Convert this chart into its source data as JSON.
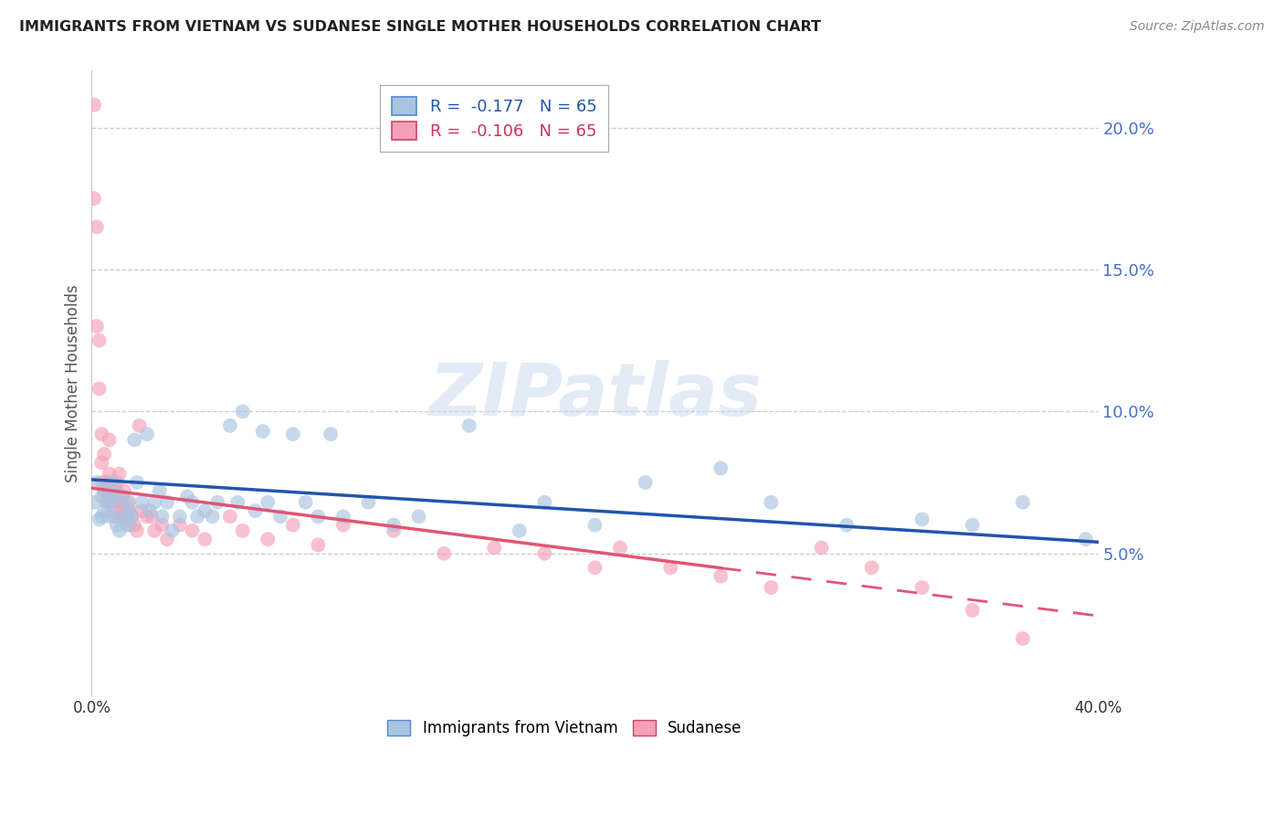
{
  "title": "IMMIGRANTS FROM VIETNAM VS SUDANESE SINGLE MOTHER HOUSEHOLDS CORRELATION CHART",
  "source": "Source: ZipAtlas.com",
  "ylabel": "Single Mother Households",
  "xlim": [
    0.0,
    0.4
  ],
  "ylim": [
    0.0,
    0.22
  ],
  "xticks": [
    0.0,
    0.05,
    0.1,
    0.15,
    0.2,
    0.25,
    0.3,
    0.35,
    0.4
  ],
  "yticks_right": [
    0.05,
    0.1,
    0.15,
    0.2
  ],
  "ytick_labels_right": [
    "5.0%",
    "10.0%",
    "15.0%",
    "20.0%"
  ],
  "blue_R": "-0.177",
  "blue_N": "65",
  "pink_R": "-0.106",
  "pink_N": "65",
  "blue_label": "Immigrants from Vietnam",
  "pink_label": "Sudanese",
  "blue_color": "#a8c4e0",
  "pink_color": "#f4a0b8",
  "blue_line_color": "#2255aa",
  "pink_line_color": "#e05575",
  "watermark": "ZIPatlas",
  "blue_scatter_x": [
    0.001,
    0.002,
    0.003,
    0.004,
    0.004,
    0.005,
    0.005,
    0.006,
    0.007,
    0.008,
    0.008,
    0.009,
    0.01,
    0.01,
    0.011,
    0.012,
    0.013,
    0.014,
    0.015,
    0.015,
    0.016,
    0.017,
    0.018,
    0.02,
    0.022,
    0.023,
    0.025,
    0.027,
    0.028,
    0.03,
    0.032,
    0.035,
    0.038,
    0.04,
    0.042,
    0.045,
    0.048,
    0.05,
    0.055,
    0.058,
    0.06,
    0.065,
    0.068,
    0.07,
    0.075,
    0.08,
    0.085,
    0.09,
    0.095,
    0.1,
    0.11,
    0.12,
    0.13,
    0.15,
    0.17,
    0.18,
    0.2,
    0.22,
    0.25,
    0.27,
    0.3,
    0.33,
    0.35,
    0.37,
    0.395
  ],
  "blue_scatter_y": [
    0.068,
    0.075,
    0.062,
    0.07,
    0.063,
    0.072,
    0.065,
    0.068,
    0.063,
    0.075,
    0.068,
    0.071,
    0.06,
    0.063,
    0.058,
    0.07,
    0.062,
    0.068,
    0.065,
    0.06,
    0.063,
    0.09,
    0.075,
    0.068,
    0.092,
    0.065,
    0.068,
    0.072,
    0.063,
    0.068,
    0.058,
    0.063,
    0.07,
    0.068,
    0.063,
    0.065,
    0.063,
    0.068,
    0.095,
    0.068,
    0.1,
    0.065,
    0.093,
    0.068,
    0.063,
    0.092,
    0.068,
    0.063,
    0.092,
    0.063,
    0.068,
    0.06,
    0.063,
    0.095,
    0.058,
    0.068,
    0.06,
    0.075,
    0.08,
    0.068,
    0.06,
    0.062,
    0.06,
    0.068,
    0.055
  ],
  "pink_scatter_x": [
    0.001,
    0.001,
    0.002,
    0.002,
    0.003,
    0.003,
    0.004,
    0.004,
    0.004,
    0.005,
    0.005,
    0.006,
    0.006,
    0.007,
    0.007,
    0.007,
    0.008,
    0.008,
    0.009,
    0.009,
    0.01,
    0.01,
    0.011,
    0.011,
    0.012,
    0.012,
    0.013,
    0.013,
    0.014,
    0.014,
    0.015,
    0.015,
    0.016,
    0.017,
    0.018,
    0.019,
    0.02,
    0.022,
    0.024,
    0.025,
    0.028,
    0.03,
    0.035,
    0.04,
    0.045,
    0.055,
    0.06,
    0.07,
    0.08,
    0.09,
    0.1,
    0.12,
    0.14,
    0.16,
    0.18,
    0.2,
    0.21,
    0.23,
    0.25,
    0.27,
    0.29,
    0.31,
    0.33,
    0.35,
    0.37
  ],
  "pink_scatter_y": [
    0.208,
    0.175,
    0.165,
    0.13,
    0.125,
    0.108,
    0.092,
    0.082,
    0.075,
    0.085,
    0.072,
    0.068,
    0.075,
    0.078,
    0.073,
    0.09,
    0.07,
    0.068,
    0.065,
    0.063,
    0.075,
    0.072,
    0.068,
    0.078,
    0.068,
    0.063,
    0.065,
    0.072,
    0.063,
    0.06,
    0.068,
    0.065,
    0.063,
    0.06,
    0.058,
    0.095,
    0.065,
    0.063,
    0.063,
    0.058,
    0.06,
    0.055,
    0.06,
    0.058,
    0.055,
    0.063,
    0.058,
    0.055,
    0.06,
    0.053,
    0.06,
    0.058,
    0.05,
    0.052,
    0.05,
    0.045,
    0.052,
    0.045,
    0.042,
    0.038,
    0.052,
    0.045,
    0.038,
    0.03,
    0.02
  ],
  "blue_trend_x0": 0.0,
  "blue_trend_y0": 0.076,
  "blue_trend_x1": 0.4,
  "blue_trend_y1": 0.054,
  "pink_trend_x0": 0.0,
  "pink_trend_y0": 0.073,
  "pink_trend_x1": 0.4,
  "pink_trend_y1": 0.028
}
